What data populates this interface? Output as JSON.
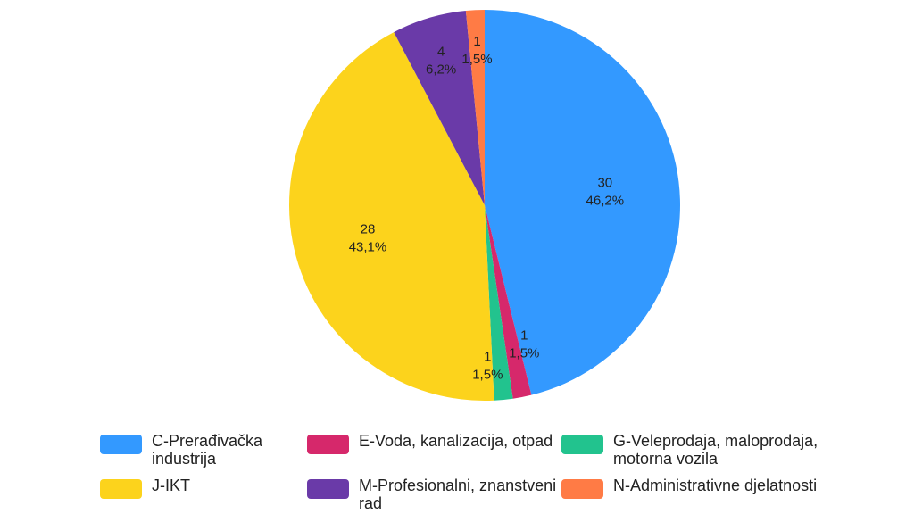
{
  "chart_data": {
    "type": "pie",
    "title": "",
    "slices": [
      {
        "name": "C-Prerađivačka industrija",
        "value": 30,
        "percent_label": "46,2%",
        "color": "#3399FF"
      },
      {
        "name": "E-Voda, kanalizacija, otpad",
        "value": 1,
        "percent_label": "1,5%",
        "color": "#D6286B"
      },
      {
        "name": "G-Veleprodaja, maloprodaja, motorna vozila",
        "value": 1,
        "percent_label": "1,5%",
        "color": "#22C38E"
      },
      {
        "name": "J-IKT",
        "value": 28,
        "percent_label": "43,1%",
        "color": "#FCD31C"
      },
      {
        "name": "M-Profesionalni, znanstveni rad",
        "value": 4,
        "percent_label": "6,2%",
        "color": "#6A3AA8"
      },
      {
        "name": "N-Administrativne djelatnosti",
        "value": 1,
        "percent_label": "1,5%",
        "color": "#FF7B45"
      }
    ],
    "legend_position": "bottom"
  },
  "legend": {
    "items": [
      {
        "label": "C-Prerađivačka industrija",
        "color": "#3399FF"
      },
      {
        "label": "E-Voda, kanalizacija, otpad",
        "color": "#D6286B"
      },
      {
        "label": "G-Veleprodaja, maloprodaja, motorna vozila",
        "color": "#22C38E"
      },
      {
        "label": "J-IKT",
        "color": "#FCD31C"
      },
      {
        "label": "M-Profesionalni, znanstveni rad",
        "color": "#6A3AA8"
      },
      {
        "label": "N-Administrativne djelatnosti",
        "color": "#FF7B45"
      }
    ]
  }
}
